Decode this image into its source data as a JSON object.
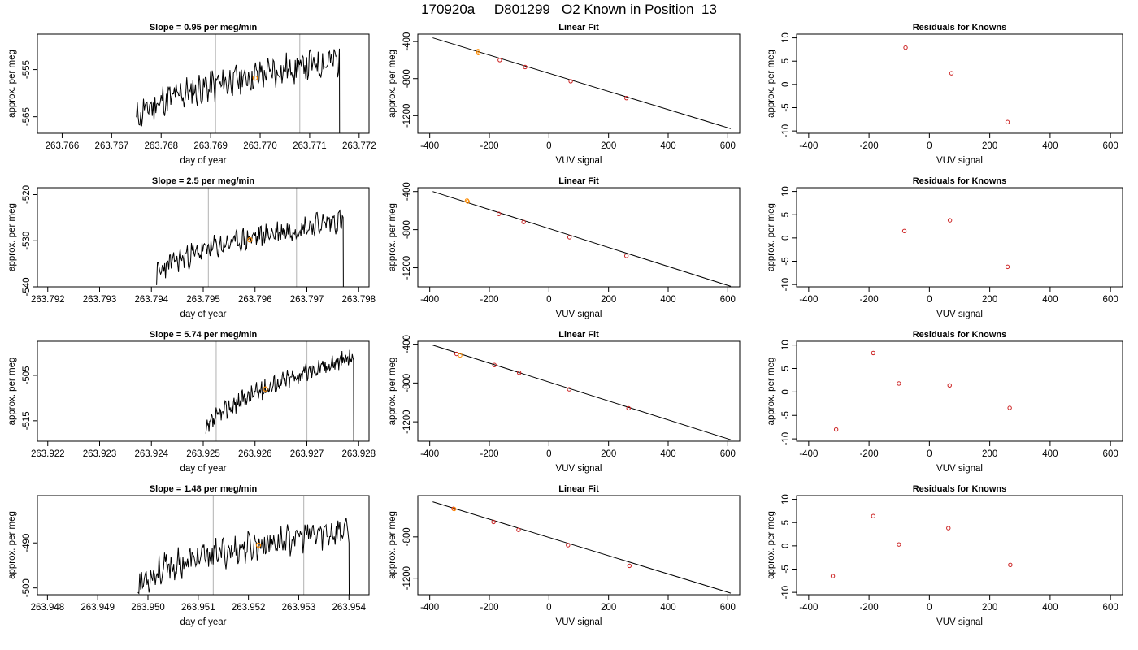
{
  "title": "170920a     D801299   O2 Known in Position  13",
  "colors": {
    "trace": "#000000",
    "vline": "#bebebe",
    "point": "#ff8c00",
    "residual": "#cc2222",
    "fitline": "#000000"
  },
  "chart_data": [
    {
      "type": "line",
      "row": 1,
      "title": "Slope =  0.95  per meg/min",
      "xlabel": "day of year",
      "ylabel": "approx. per meg",
      "xlim": [
        263.7655,
        263.7722
      ],
      "ylim": [
        -568.5,
        -547.5
      ],
      "xticks": [
        "263.766",
        "263.767",
        "263.768",
        "263.769",
        "263.770",
        "263.771",
        "263.772"
      ],
      "yticks": [
        -565,
        -555
      ],
      "trace_start": 263.7675,
      "trace_end": 263.7716,
      "trace_y_start": -566,
      "trace_y_end": -553,
      "trace_noise": 3,
      "trace_seed": 11,
      "vlines": [
        263.7691,
        263.7708
      ],
      "point": {
        "x": 263.7699,
        "y": -556.8
      }
    },
    {
      "type": "line",
      "row": 2,
      "title": "Slope =  2.5  per meg/min",
      "xlabel": "day of year",
      "ylabel": "approx. per meg",
      "xlim": [
        263.7918,
        263.7982
      ],
      "ylim": [
        -540,
        -518.5
      ],
      "xticks": [
        "263.792",
        "263.793",
        "263.794",
        "263.795",
        "263.796",
        "263.797",
        "263.798"
      ],
      "yticks": [
        -540,
        -530,
        -520
      ],
      "trace_start": 263.7941,
      "trace_end": 263.7977,
      "trace_y_start": -538,
      "trace_y_end": -525.5,
      "trace_noise": 2.2,
      "trace_seed": 23,
      "vlines": [
        263.7951,
        263.7968
      ],
      "point": {
        "x": 263.7959,
        "y": -529.8
      }
    },
    {
      "type": "line",
      "row": 3,
      "title": "Slope =  5.74  per meg/min",
      "xlabel": "day of year",
      "ylabel": "approx. per meg",
      "xlim": [
        263.9218,
        263.9282
      ],
      "ylim": [
        -519.5,
        -497.5
      ],
      "xticks": [
        "263.922",
        "263.923",
        "263.924",
        "263.925",
        "263.926",
        "263.927",
        "263.928"
      ],
      "yticks": [
        -515,
        -505
      ],
      "trace_start": 263.92505,
      "trace_end": 263.9279,
      "trace_y_start": -518.5,
      "trace_y_end": -501,
      "trace_noise": 1.8,
      "trace_seed": 37,
      "vlines": [
        263.92525,
        263.927
      ],
      "point": {
        "x": 263.9262,
        "y": -508
      }
    },
    {
      "type": "line",
      "row": 4,
      "title": "Slope =  1.48  per meg/min",
      "xlabel": "day of year",
      "ylabel": "approx. per meg",
      "xlim": [
        263.9478,
        263.9544
      ],
      "ylim": [
        -501.5,
        -479.5
      ],
      "xticks": [
        "263.948",
        "263.949",
        "263.950",
        "263.951",
        "263.952",
        "263.953",
        "263.954"
      ],
      "yticks": [
        -500,
        -490
      ],
      "trace_start": 263.9498,
      "trace_end": 263.954,
      "trace_y_start": -500,
      "trace_y_end": -487,
      "trace_noise": 2.8,
      "trace_seed": 53,
      "vlines": [
        263.9513,
        263.9531
      ],
      "point": {
        "x": 263.9522,
        "y": -490.5
      }
    },
    {
      "type": "scatter",
      "row": 1,
      "title": "Linear Fit",
      "xlabel": "VUV signal",
      "ylabel": "approx. per meg",
      "xlim": [
        -440,
        640
      ],
      "ylim": [
        -1390,
        -320
      ],
      "xticks": [
        -400,
        -200,
        0,
        200,
        400,
        600
      ],
      "yticks": [
        -400,
        -800,
        -1200
      ],
      "fit": {
        "x0": -390,
        "y0": -360,
        "x1": 610,
        "y1": -1340
      },
      "points": [
        {
          "x": -238,
          "y": -503,
          "color": "orange"
        },
        {
          "x": -237,
          "y": -524,
          "color": "orange"
        },
        {
          "x": -165,
          "y": -600
        },
        {
          "x": -80,
          "y": -675
        },
        {
          "x": 73,
          "y": -828
        },
        {
          "x": 260,
          "y": -1010
        }
      ]
    },
    {
      "type": "scatter",
      "row": 2,
      "title": "Linear Fit",
      "xlabel": "VUV signal",
      "ylabel": "approx. per meg",
      "xlim": [
        -440,
        640
      ],
      "ylim": [
        -1400,
        -360
      ],
      "xticks": [
        -400,
        -200,
        0,
        200,
        400,
        600
      ],
      "yticks": [
        -400,
        -800,
        -1200
      ],
      "fit": {
        "x0": -390,
        "y0": -400,
        "x1": 610,
        "y1": -1395
      },
      "points": [
        {
          "x": -275,
          "y": -495,
          "color": "orange"
        },
        {
          "x": -273,
          "y": -505,
          "color": "orange"
        },
        {
          "x": -168,
          "y": -635
        },
        {
          "x": -85,
          "y": -720
        },
        {
          "x": 69,
          "y": -880
        },
        {
          "x": 260,
          "y": -1075
        }
      ]
    },
    {
      "type": "scatter",
      "row": 3,
      "title": "Linear Fit",
      "xlabel": "VUV signal",
      "ylabel": "approx. per meg",
      "xlim": [
        -440,
        640
      ],
      "ylim": [
        -1400,
        -370
      ],
      "xticks": [
        -400,
        -200,
        0,
        200,
        400,
        600
      ],
      "yticks": [
        -400,
        -800,
        -1200
      ],
      "fit": {
        "x0": -390,
        "y0": -410,
        "x1": 610,
        "y1": -1385
      },
      "points": [
        {
          "x": -310,
          "y": -500
        },
        {
          "x": -298,
          "y": -515,
          "color": "orange"
        },
        {
          "x": -183,
          "y": -615
        },
        {
          "x": -100,
          "y": -695
        },
        {
          "x": 68,
          "y": -865
        },
        {
          "x": 267,
          "y": -1060
        }
      ]
    },
    {
      "type": "scatter",
      "row": 4,
      "title": "Linear Fit",
      "xlabel": "VUV signal",
      "ylabel": "approx. per meg",
      "xlim": [
        -440,
        640
      ],
      "ylim": [
        -1360,
        -400
      ],
      "xticks": [
        -400,
        -200,
        0,
        200,
        400,
        600
      ],
      "yticks": [
        -800,
        -1200
      ],
      "fit": {
        "x0": -390,
        "y0": -460,
        "x1": 610,
        "y1": -1345
      },
      "points": [
        {
          "x": -320,
          "y": -527
        },
        {
          "x": -318,
          "y": -530,
          "color": "orange"
        },
        {
          "x": -186,
          "y": -655
        },
        {
          "x": -102,
          "y": -732
        },
        {
          "x": 64,
          "y": -880
        },
        {
          "x": 270,
          "y": -1080
        }
      ]
    },
    {
      "type": "scatter",
      "row": 1,
      "title": "Residuals for Knowns",
      "xlabel": "VUV signal",
      "ylabel": "approx. per meg",
      "xlim": [
        -440,
        640
      ],
      "ylim": [
        -10.5,
        10.8
      ],
      "xticks": [
        -400,
        -200,
        0,
        200,
        400,
        600
      ],
      "yticks": [
        -10,
        -5,
        0,
        5,
        10
      ],
      "points": [
        {
          "x": -79,
          "y": 7.9
        },
        {
          "x": 73,
          "y": 2.4
        },
        {
          "x": 259,
          "y": -8.1
        }
      ]
    },
    {
      "type": "scatter",
      "row": 2,
      "title": "Residuals for Knowns",
      "xlabel": "VUV signal",
      "ylabel": "approx. per meg",
      "xlim": [
        -440,
        640
      ],
      "ylim": [
        -10.5,
        10.8
      ],
      "xticks": [
        -400,
        -200,
        0,
        200,
        400,
        600
      ],
      "yticks": [
        -10,
        -5,
        0,
        5,
        10
      ],
      "points": [
        {
          "x": -83,
          "y": 1.5
        },
        {
          "x": 68,
          "y": 3.8
        },
        {
          "x": 259,
          "y": -6.2
        }
      ]
    },
    {
      "type": "scatter",
      "row": 3,
      "title": "Residuals for Knowns",
      "xlabel": "VUV signal",
      "ylabel": "approx. per meg",
      "xlim": [
        -440,
        640
      ],
      "ylim": [
        -10.5,
        10.8
      ],
      "xticks": [
        -400,
        -200,
        0,
        200,
        400,
        600
      ],
      "yticks": [
        -10,
        -5,
        0,
        5,
        10
      ],
      "points": [
        {
          "x": -309,
          "y": -8.0
        },
        {
          "x": -186,
          "y": 8.3
        },
        {
          "x": -101,
          "y": 1.8
        },
        {
          "x": 67,
          "y": 1.4
        },
        {
          "x": 266,
          "y": -3.4
        }
      ]
    },
    {
      "type": "scatter",
      "row": 4,
      "title": "Residuals for Knowns",
      "xlabel": "VUV signal",
      "ylabel": "approx. per meg",
      "xlim": [
        -440,
        640
      ],
      "ylim": [
        -10.5,
        10.8
      ],
      "xticks": [
        -400,
        -200,
        0,
        200,
        400,
        600
      ],
      "yticks": [
        -10,
        -5,
        0,
        5,
        10
      ],
      "points": [
        {
          "x": -320,
          "y": -6.5
        },
        {
          "x": -186,
          "y": 6.4
        },
        {
          "x": -101,
          "y": 0.3
        },
        {
          "x": 63,
          "y": 3.8
        },
        {
          "x": 268,
          "y": -4.1
        }
      ]
    }
  ]
}
